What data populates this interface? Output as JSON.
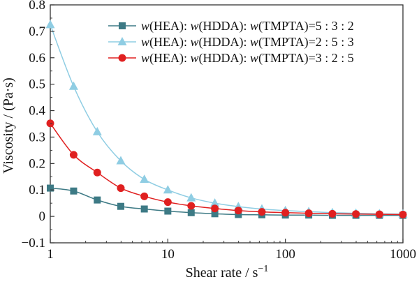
{
  "chart_data": {
    "type": "line",
    "title": "",
    "xlabel": "Shear rate / s",
    "xlabel_sup": "−1",
    "ylabel": "Viscosity / (Pa·s)",
    "x_scale": "log",
    "xlim": [
      1,
      1000
    ],
    "ylim": [
      -0.1,
      0.8
    ],
    "x_ticks": [
      1,
      10,
      100,
      1000
    ],
    "x_tick_labels": [
      "1",
      "10",
      "100",
      "1000"
    ],
    "y_ticks": [
      -0.1,
      0,
      0.1,
      0.2,
      0.3,
      0.4,
      0.5,
      0.6,
      0.7,
      0.8
    ],
    "y_tick_labels": [
      "−0.1",
      "0",
      "0.1",
      "0.2",
      "0.3",
      "0.4",
      "0.5",
      "0.6",
      "0.7",
      "0.8"
    ],
    "grid": false,
    "legend_position": "top-right",
    "x": [
      1,
      1.58,
      2.51,
      3.98,
      6.31,
      10,
      15.8,
      25.1,
      39.8,
      63.1,
      100,
      158,
      251,
      398,
      631,
      1000
    ],
    "series": [
      {
        "name_parts": [
          "w",
          "(HEA): ",
          "w",
          "(HDDA): ",
          "w",
          "(TMPTA)=5 : 3 : 2"
        ],
        "color": "#3d7a85",
        "marker": "square",
        "values": [
          0.107,
          0.096,
          0.062,
          0.038,
          0.028,
          0.02,
          0.014,
          0.01,
          0.007,
          0.006,
          0.005,
          0.005,
          0.004,
          0.004,
          0.004,
          0.004
        ]
      },
      {
        "name_parts": [
          "w",
          "(HEA): ",
          "w",
          "(HDDA): ",
          "w",
          "(TMPTA)=2 : 5 : 3"
        ],
        "color": "#8fcde3",
        "marker": "triangle",
        "values": [
          0.725,
          0.492,
          0.32,
          0.21,
          0.14,
          0.1,
          0.07,
          0.05,
          0.037,
          0.028,
          0.022,
          0.018,
          0.014,
          0.012,
          0.01,
          0.009
        ]
      },
      {
        "name_parts": [
          "w",
          "(HEA): ",
          "w",
          "(HDDA): ",
          "w",
          "(TMPTA)=3 : 2 : 5"
        ],
        "color": "#e02020",
        "marker": "circle",
        "values": [
          0.352,
          0.233,
          0.166,
          0.107,
          0.076,
          0.054,
          0.04,
          0.03,
          0.022,
          0.017,
          0.014,
          0.012,
          0.01,
          0.009,
          0.008,
          0.007
        ]
      }
    ]
  }
}
